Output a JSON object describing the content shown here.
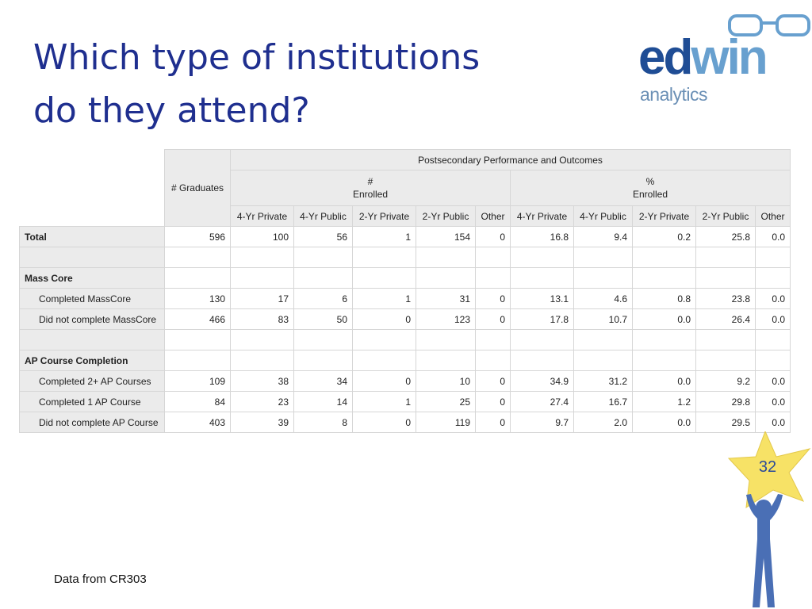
{
  "slide": {
    "title_line1": "Which type of institutions",
    "title_line2": "do they attend?",
    "footnote": "Data from CR303",
    "page_number": "32"
  },
  "logo": {
    "word_part1": "ed",
    "word_part2": "win",
    "subtitle": "analytics",
    "colors": {
      "ed": "#1f4d95",
      "win": "#68a0cf",
      "glasses": "#68a0cf"
    }
  },
  "table": {
    "header_graduates": "# Graduates",
    "header_group": "Postsecondary Performance and Outcomes",
    "header_count_symbol": "#",
    "header_count_label": "Enrolled",
    "header_pct_symbol": "%",
    "header_pct_label": "Enrolled",
    "columns": [
      "4-Yr Private",
      "4-Yr Public",
      "2-Yr Private",
      "2-Yr Public",
      "Other",
      "4-Yr Private",
      "4-Yr Public",
      "2-Yr Private",
      "2-Yr Public",
      "Other"
    ],
    "rows": [
      {
        "label": "Total",
        "kind": "group",
        "values": [
          "596",
          "100",
          "56",
          "1",
          "154",
          "0",
          "16.8",
          "9.4",
          "0.2",
          "25.8",
          "0.0"
        ]
      },
      {
        "label": "",
        "kind": "blank",
        "values": []
      },
      {
        "label": "Mass Core",
        "kind": "group",
        "values": []
      },
      {
        "label": "Completed MassCore",
        "kind": "sub",
        "values": [
          "130",
          "17",
          "6",
          "1",
          "31",
          "0",
          "13.1",
          "4.6",
          "0.8",
          "23.8",
          "0.0"
        ]
      },
      {
        "label": "Did not complete MassCore",
        "kind": "sub",
        "values": [
          "466",
          "83",
          "50",
          "0",
          "123",
          "0",
          "17.8",
          "10.7",
          "0.0",
          "26.4",
          "0.0"
        ]
      },
      {
        "label": "",
        "kind": "blank",
        "values": []
      },
      {
        "label": "AP Course Completion",
        "kind": "group",
        "values": []
      },
      {
        "label": "Completed 2+ AP Courses",
        "kind": "sub",
        "values": [
          "109",
          "38",
          "34",
          "0",
          "10",
          "0",
          "34.9",
          "31.2",
          "0.0",
          "9.2",
          "0.0"
        ]
      },
      {
        "label": "Completed 1 AP Course",
        "kind": "sub",
        "values": [
          "84",
          "23",
          "14",
          "1",
          "25",
          "0",
          "27.4",
          "16.7",
          "1.2",
          "29.8",
          "0.0"
        ]
      },
      {
        "label": "Did not complete AP Course",
        "kind": "sub",
        "values": [
          "403",
          "39",
          "8",
          "0",
          "119",
          "0",
          "9.7",
          "2.0",
          "0.0",
          "29.5",
          "0.0"
        ]
      }
    ]
  },
  "mascot": {
    "star_color": "#f7e266",
    "figure_color": "#4a6fb5"
  }
}
